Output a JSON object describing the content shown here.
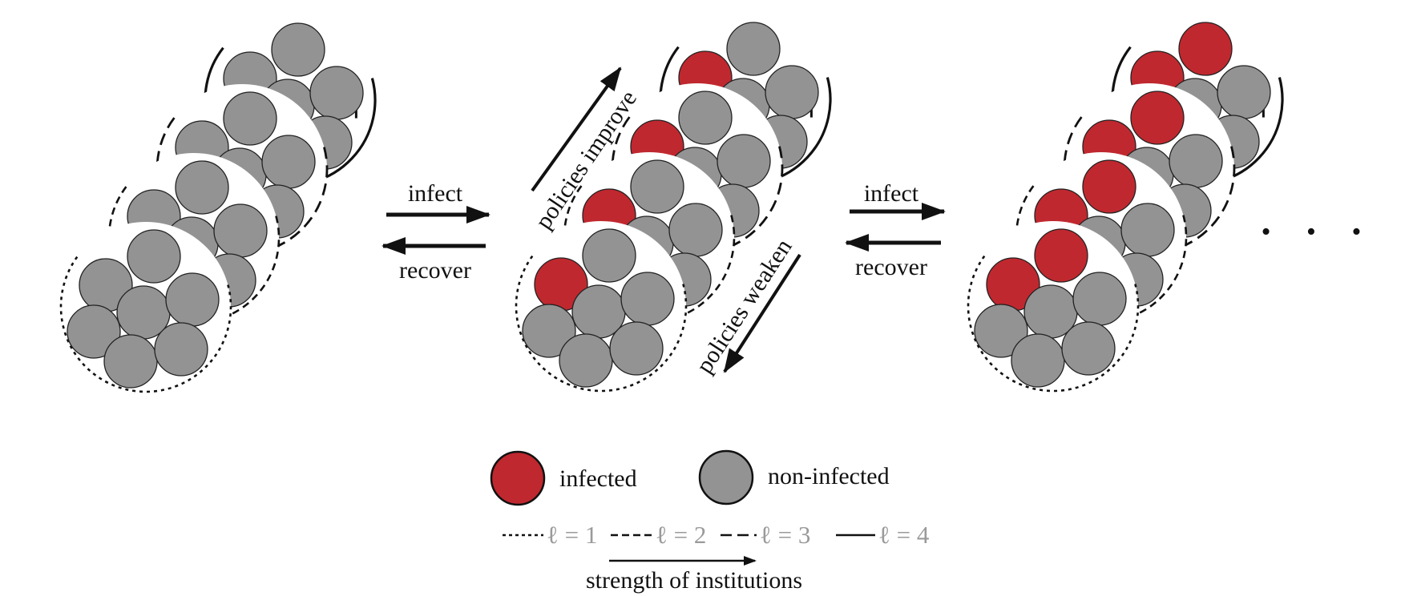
{
  "labels": {
    "infect_1": "infect",
    "recover_1": "recover",
    "infect_2": "infect",
    "recover_2": "recover",
    "policies_improve": "policies improve",
    "policies_weaken": "policies weaken",
    "ellipsis": "• • •"
  },
  "legend": {
    "infected": "infected",
    "non_infected": "non-infected",
    "levels": [
      "ℓ = 1",
      "ℓ = 2",
      "ℓ = 3",
      "ℓ = 4"
    ],
    "strength": "strength of institutions"
  },
  "colors": {
    "infected": "#c0282f",
    "non_infected": "#939393",
    "outline": "#111111",
    "level_text": "#9a9a9a"
  },
  "groups": [
    {
      "name": "state-1",
      "infected": [
        [],
        [],
        [],
        []
      ]
    },
    {
      "name": "state-2",
      "infected": [
        [
          0
        ],
        [
          0
        ],
        [
          0
        ],
        [
          0
        ]
      ]
    },
    {
      "name": "state-3",
      "infected": [
        [
          0,
          1
        ],
        [
          0,
          1
        ],
        [
          0,
          1
        ],
        [
          0,
          1
        ]
      ]
    }
  ]
}
